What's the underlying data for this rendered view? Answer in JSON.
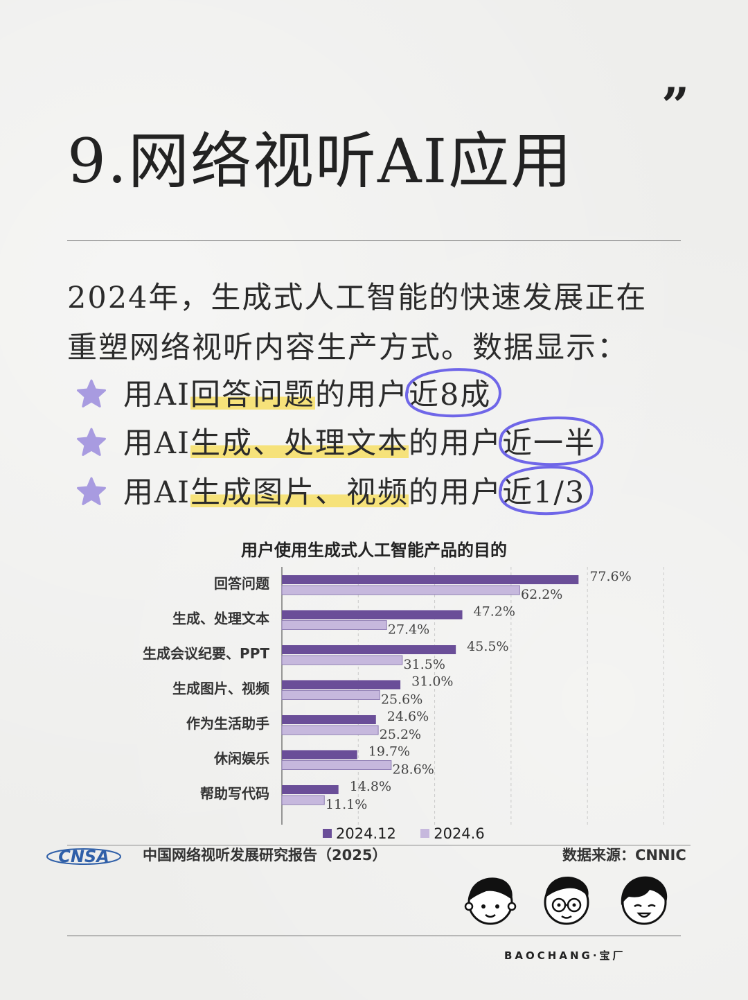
{
  "header": {
    "quote_mark": "”",
    "title": "9.网络视听AI应用"
  },
  "intro": {
    "line1": "2024年，生成式人工智能的快速发展正在",
    "line2": "重塑网络视听内容生产方式。数据显示："
  },
  "bullets": [
    {
      "prefix": "用AI",
      "highlight": "回答问题",
      "middle": "的用户",
      "circled": "近8成"
    },
    {
      "prefix": "用AI",
      "highlight": "生成、处理文本",
      "middle": "的用户",
      "circled": "近一半"
    },
    {
      "prefix": "用AI",
      "highlight": "生成图片、视频",
      "middle": "的用户",
      "circled": "近1/3"
    }
  ],
  "colors": {
    "series_dark": "#6a4e98",
    "series_light": "#c6b8dd",
    "highlight": "#f6e27a",
    "circle": "#6f66e8",
    "star": "#a89be0"
  },
  "chart_data": {
    "type": "bar",
    "orientation": "horizontal",
    "title": "用户使用生成式人工智能产品的目的",
    "categories": [
      "回答问题",
      "生成、处理文本",
      "生成会议纪要、PPT",
      "生成图片、视频",
      "作为生活助手",
      "休闲娱乐",
      "帮助写代码"
    ],
    "series": [
      {
        "name": "2024.12",
        "values": [
          77.6,
          47.2,
          45.5,
          31.0,
          24.6,
          19.7,
          14.8
        ],
        "labels": [
          "77.6%",
          "47.2%",
          "45.5%",
          "31.0%",
          "24.6%",
          "19.7%",
          "14.8%"
        ]
      },
      {
        "name": "2024.6",
        "values": [
          62.2,
          27.4,
          31.5,
          25.6,
          25.2,
          28.6,
          11.1
        ],
        "labels": [
          "62.2%",
          "27.4%",
          "31.5%",
          "25.6%",
          "25.2%",
          "28.6%",
          "11.1%"
        ]
      }
    ],
    "xlim": [
      0,
      100
    ],
    "grid": true,
    "legend": "bottom"
  },
  "footer": {
    "logo_text": "CNSA",
    "report": "中国网络视听发展研究报告（2025）",
    "source": "数据来源：CNNIC",
    "brand": "BAOCHANG·宝厂"
  }
}
